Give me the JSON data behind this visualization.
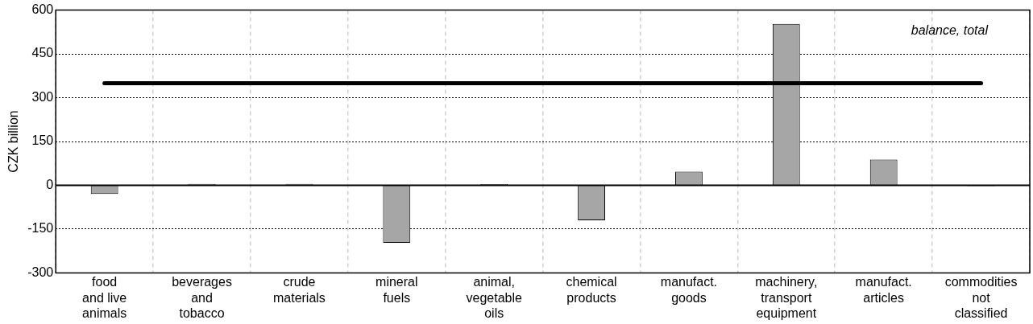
{
  "chart_data": {
    "type": "bar",
    "ylabel": "CZK billion",
    "categories": [
      "food\nand live\nanimals",
      "beverages\nand\ntobacco",
      "crude\nmaterials",
      "mineral\nfuels",
      "animal,\nvegetable\noils",
      "chemical\nproducts",
      "manufact.\ngoods",
      "machinery,\ntransport\nequipment",
      "manufact.\narticles",
      "commodities\nnot\nclassified"
    ],
    "series": [
      {
        "color": "#a6a6a6",
        "values": [
          -30,
          5,
          5,
          -197,
          4,
          -120,
          47,
          553,
          88,
          -3
        ]
      },
      {
        "type": "line",
        "name": "balance, total",
        "color": "#000000",
        "values": [
          350,
          350,
          350,
          350,
          350,
          350,
          350,
          350,
          350,
          350
        ]
      }
    ],
    "ylim": [
      -300,
      600
    ],
    "yticks": [
      -300,
      -150,
      0,
      150,
      300,
      450,
      600
    ],
    "grid": true,
    "legend": false,
    "marker": "none",
    "line_style": "solid"
  }
}
